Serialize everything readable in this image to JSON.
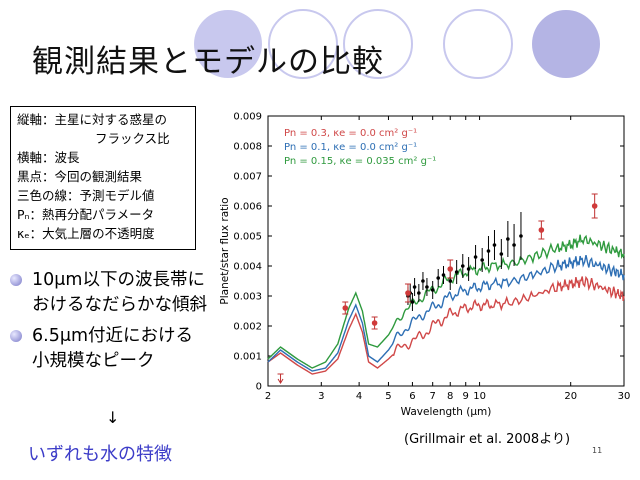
{
  "slide": {
    "title": "観測結果とモデルの比較",
    "legend_lines": [
      "縦軸：主星に対する惑星の",
      "フラックス比",
      "横軸：波長",
      "黒点：今回の観測結果",
      "三色の線：予測モデル値",
      "Pₙ：熱再分配パラメータ",
      "κₑ：大気上層の不透明度"
    ],
    "bullets": [
      "10μm以下の波長帯におけるなだらかな傾斜",
      "6.5μm付近における小規模なピーク"
    ],
    "arrow": "↓",
    "conclusion": "いずれも水の特徴",
    "citation": "(Grillmair et al. 2008より)",
    "page_number": "11",
    "circle_colors": [
      "#c8c8ee",
      "#b4b4e4"
    ]
  },
  "chart_data": {
    "type": "line",
    "xlabel": "Wavelength (μm)",
    "ylabel": "Planet/star flux ratio",
    "xscale": "log",
    "xlim": [
      2,
      30
    ],
    "ylim": [
      0,
      0.009
    ],
    "xticks": [
      2,
      3,
      4,
      5,
      6,
      7,
      8,
      9,
      10,
      20,
      30
    ],
    "yticks": [
      "0",
      "0.001",
      "0.002",
      "0.003",
      "0.004",
      "0.005",
      "0.006",
      "0.007",
      "0.008",
      "0.009"
    ],
    "grid": false,
    "legend_position": "top-left",
    "series": [
      {
        "name": "Pn = 0.3, κe = 0.0 cm² g⁻¹",
        "color": "#d04848",
        "points": [
          [
            2.0,
            0.0008
          ],
          [
            2.2,
            0.0011
          ],
          [
            2.5,
            0.0007
          ],
          [
            2.8,
            0.0004
          ],
          [
            3.1,
            0.0005
          ],
          [
            3.4,
            0.0009
          ],
          [
            3.7,
            0.0019
          ],
          [
            3.9,
            0.0024
          ],
          [
            4.1,
            0.0018
          ],
          [
            4.3,
            0.0008
          ],
          [
            4.6,
            0.0006
          ],
          [
            5.0,
            0.0009
          ],
          [
            5.5,
            0.0013
          ],
          [
            6.0,
            0.0015
          ],
          [
            6.5,
            0.0017
          ],
          [
            7.0,
            0.002
          ],
          [
            7.5,
            0.0022
          ],
          [
            8.0,
            0.0024
          ],
          [
            9.0,
            0.0026
          ],
          [
            10.0,
            0.0027
          ],
          [
            11.0,
            0.0027
          ],
          [
            13.0,
            0.0028
          ],
          [
            15.0,
            0.003
          ],
          [
            18.0,
            0.0033
          ],
          [
            20.0,
            0.0034
          ],
          [
            22.0,
            0.0035
          ],
          [
            25.0,
            0.0033
          ],
          [
            28.0,
            0.0031
          ],
          [
            30.0,
            0.003
          ]
        ]
      },
      {
        "name": "Pn = 0.1, κe = 0.0 cm² g⁻¹",
        "color": "#2e6fb4",
        "points": [
          [
            2.0,
            0.0008
          ],
          [
            2.2,
            0.0012
          ],
          [
            2.5,
            0.0008
          ],
          [
            2.8,
            0.0005
          ],
          [
            3.1,
            0.0006
          ],
          [
            3.4,
            0.0011
          ],
          [
            3.7,
            0.0022
          ],
          [
            3.9,
            0.0027
          ],
          [
            4.1,
            0.0021
          ],
          [
            4.3,
            0.001
          ],
          [
            4.6,
            0.0008
          ],
          [
            5.0,
            0.0012
          ],
          [
            5.5,
            0.0018
          ],
          [
            6.0,
            0.0021
          ],
          [
            6.5,
            0.0024
          ],
          [
            7.0,
            0.0026
          ],
          [
            7.5,
            0.0028
          ],
          [
            8.0,
            0.003
          ],
          [
            9.0,
            0.0032
          ],
          [
            10.0,
            0.0033
          ],
          [
            11.0,
            0.0034
          ],
          [
            13.0,
            0.0035
          ],
          [
            15.0,
            0.0037
          ],
          [
            18.0,
            0.004
          ],
          [
            20.0,
            0.0041
          ],
          [
            22.0,
            0.0042
          ],
          [
            25.0,
            0.004
          ],
          [
            28.0,
            0.0038
          ],
          [
            30.0,
            0.0037
          ]
        ]
      },
      {
        "name": "Pn = 0.15, κe = 0.035 cm² g⁻¹",
        "color": "#2f9a3e",
        "points": [
          [
            2.0,
            0.0009
          ],
          [
            2.2,
            0.0013
          ],
          [
            2.5,
            0.0009
          ],
          [
            2.8,
            0.0006
          ],
          [
            3.1,
            0.0008
          ],
          [
            3.4,
            0.0014
          ],
          [
            3.7,
            0.0026
          ],
          [
            3.9,
            0.0031
          ],
          [
            4.1,
            0.0025
          ],
          [
            4.3,
            0.0014
          ],
          [
            4.6,
            0.0013
          ],
          [
            5.0,
            0.0017
          ],
          [
            5.5,
            0.0024
          ],
          [
            6.0,
            0.0027
          ],
          [
            6.5,
            0.003
          ],
          [
            7.0,
            0.0032
          ],
          [
            7.5,
            0.0034
          ],
          [
            8.0,
            0.0036
          ],
          [
            9.0,
            0.0038
          ],
          [
            10.0,
            0.0039
          ],
          [
            11.0,
            0.004
          ],
          [
            13.0,
            0.0041
          ],
          [
            15.0,
            0.0043
          ],
          [
            18.0,
            0.0046
          ],
          [
            20.0,
            0.0047
          ],
          [
            22.0,
            0.0049
          ],
          [
            25.0,
            0.0047
          ],
          [
            28.0,
            0.0045
          ],
          [
            30.0,
            0.0044
          ]
        ]
      }
    ],
    "observations": [
      {
        "x": 5.8,
        "y": 0.003,
        "err": 0.0003
      },
      {
        "x": 5.9,
        "y": 0.0031,
        "err": 0.0003
      },
      {
        "x": 6.0,
        "y": 0.0028,
        "err": 0.0003
      },
      {
        "x": 6.1,
        "y": 0.0033,
        "err": 0.0003
      },
      {
        "x": 6.3,
        "y": 0.0031,
        "err": 0.0003
      },
      {
        "x": 6.5,
        "y": 0.0035,
        "err": 0.0003
      },
      {
        "x": 6.7,
        "y": 0.0033,
        "err": 0.0003
      },
      {
        "x": 7.0,
        "y": 0.0032,
        "err": 0.0003
      },
      {
        "x": 7.3,
        "y": 0.0036,
        "err": 0.0003
      },
      {
        "x": 7.6,
        "y": 0.0037,
        "err": 0.0003
      },
      {
        "x": 8.0,
        "y": 0.0035,
        "err": 0.0003
      },
      {
        "x": 8.4,
        "y": 0.0038,
        "err": 0.0004
      },
      {
        "x": 8.8,
        "y": 0.004,
        "err": 0.0004
      },
      {
        "x": 9.2,
        "y": 0.0039,
        "err": 0.0004
      },
      {
        "x": 9.7,
        "y": 0.0043,
        "err": 0.0004
      },
      {
        "x": 10.2,
        "y": 0.0042,
        "err": 0.0004
      },
      {
        "x": 10.7,
        "y": 0.0045,
        "err": 0.0005
      },
      {
        "x": 11.2,
        "y": 0.0047,
        "err": 0.0005
      },
      {
        "x": 11.8,
        "y": 0.0044,
        "err": 0.0005
      },
      {
        "x": 12.4,
        "y": 0.0049,
        "err": 0.0006
      },
      {
        "x": 13.0,
        "y": 0.0047,
        "err": 0.0007
      },
      {
        "x": 13.7,
        "y": 0.005,
        "err": 0.0008
      }
    ],
    "photometry": [
      {
        "x": 3.6,
        "y": 0.0026,
        "err": 0.0002
      },
      {
        "x": 4.5,
        "y": 0.0021,
        "err": 0.0002
      },
      {
        "x": 5.8,
        "y": 0.0031,
        "err": 0.0003
      },
      {
        "x": 8.0,
        "y": 0.0039,
        "err": 0.0003
      },
      {
        "x": 16.0,
        "y": 0.0052,
        "err": 0.0003
      },
      {
        "x": 24.0,
        "y": 0.006,
        "err": 0.0004
      }
    ],
    "upper_limit": {
      "x": 2.2,
      "y": 0.0004
    }
  }
}
